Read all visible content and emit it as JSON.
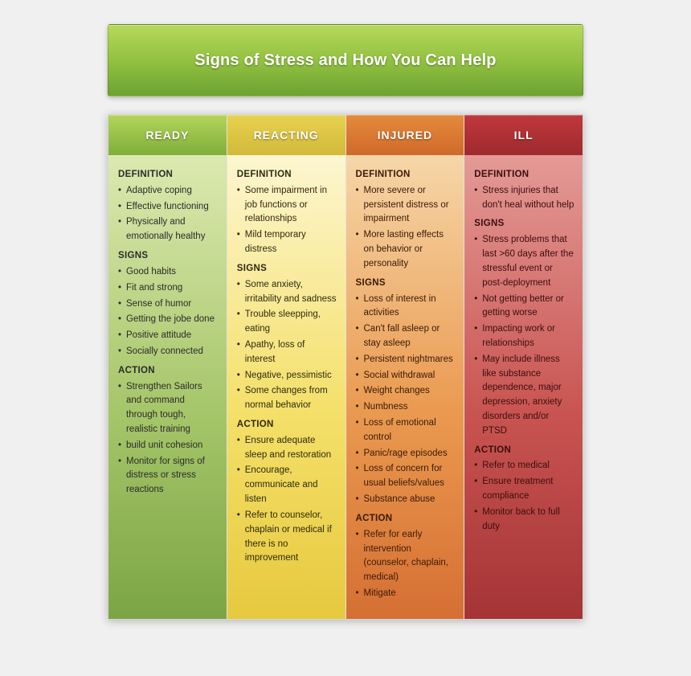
{
  "title": "Signs of Stress and How You Can Help",
  "title_banner_gradient": [
    "#b7d95a",
    "#8fbf3f",
    "#6da232"
  ],
  "section_labels": {
    "definition": "DEFINITION",
    "signs": "SIGNS",
    "action": "ACTION"
  },
  "text_colors": {
    "heading": "#222222",
    "body_dark": "#333333",
    "body_red": "#4a1010"
  },
  "columns": [
    {
      "key": "ready",
      "header": "READY",
      "header_gradient": [
        "#b4d55a",
        "#7fae3a"
      ],
      "body_gradient": [
        "#dce9b0",
        "#a6c66a",
        "#7ba545"
      ],
      "text_color": "#2b2b2b",
      "definition": [
        "Adaptive coping",
        "Effective functioning",
        "Physically and emotionally healthy"
      ],
      "signs": [
        "Good habits",
        "Fit and strong",
        "Sense of humor",
        "Getting the jobe done",
        "Positive attitude",
        "Socially connected"
      ],
      "action": [
        "Strengthen Sailors and command through tough, realistic training",
        "build unit cohesion",
        "Monitor for signs of distress or stress reactions"
      ]
    },
    {
      "key": "reacting",
      "header": "REACTING",
      "header_gradient": [
        "#e7d24e",
        "#d2b93a"
      ],
      "body_gradient": [
        "#fdf6d0",
        "#f4e06a",
        "#e7c93f"
      ],
      "text_color": "#2f2a10",
      "definition": [
        "Some impairment in job functions or relationships",
        "Mild temporary distress"
      ],
      "signs": [
        "Some anxiety, irritability and sadness",
        "Trouble sleepping, eating",
        "Apathy, loss of interest",
        "Negative, pessimistic",
        "Some changes from normal behavior"
      ],
      "action": [
        "Ensure adequate sleep and restoration",
        "Encourage, communicate and listen",
        "Refer to counselor, chaplain or medical if there is no improvement"
      ]
    },
    {
      "key": "injured",
      "header": "INJURED",
      "header_gradient": [
        "#e58a3c",
        "#cf6a2a"
      ],
      "body_gradient": [
        "#f6d6a8",
        "#ea9a50",
        "#d56f33"
      ],
      "text_color": "#3a1a08",
      "definition": [
        "More severe or persistent distress or impairment",
        "More lasting effects on behavior or personality"
      ],
      "signs": [
        "Loss of interest in activities",
        "Can't fall asleep or stay asleep",
        "Persistent nightmares",
        "Social withdrawal",
        "Weight changes",
        "Numbness",
        "Loss of emotional control",
        "Panic/rage episodes",
        "Loss of concern for usual beliefs/values",
        "Substance abuse"
      ],
      "action": [
        "Refer for early intervention (counselor, chaplain, medical)",
        "Mitigate"
      ]
    },
    {
      "key": "ill",
      "header": "ILL",
      "header_gradient": [
        "#c0383c",
        "#9e2a2e"
      ],
      "body_gradient": [
        "#e49a96",
        "#c95552",
        "#a53436"
      ],
      "text_color": "#3a0e0e",
      "definition": [
        "Stress injuries that don't heal without help"
      ],
      "signs": [
        "Stress problems that last >60 days after the stressful event or post-deployment",
        "Not getting better or getting worse",
        "Impacting work or relationships",
        "May include illness like substance dependence, major depression, anxiety disorders and/or PTSD"
      ],
      "action": [
        "Refer to medical",
        "Ensure treatment compliance",
        "Monitor back to full duty"
      ]
    }
  ]
}
